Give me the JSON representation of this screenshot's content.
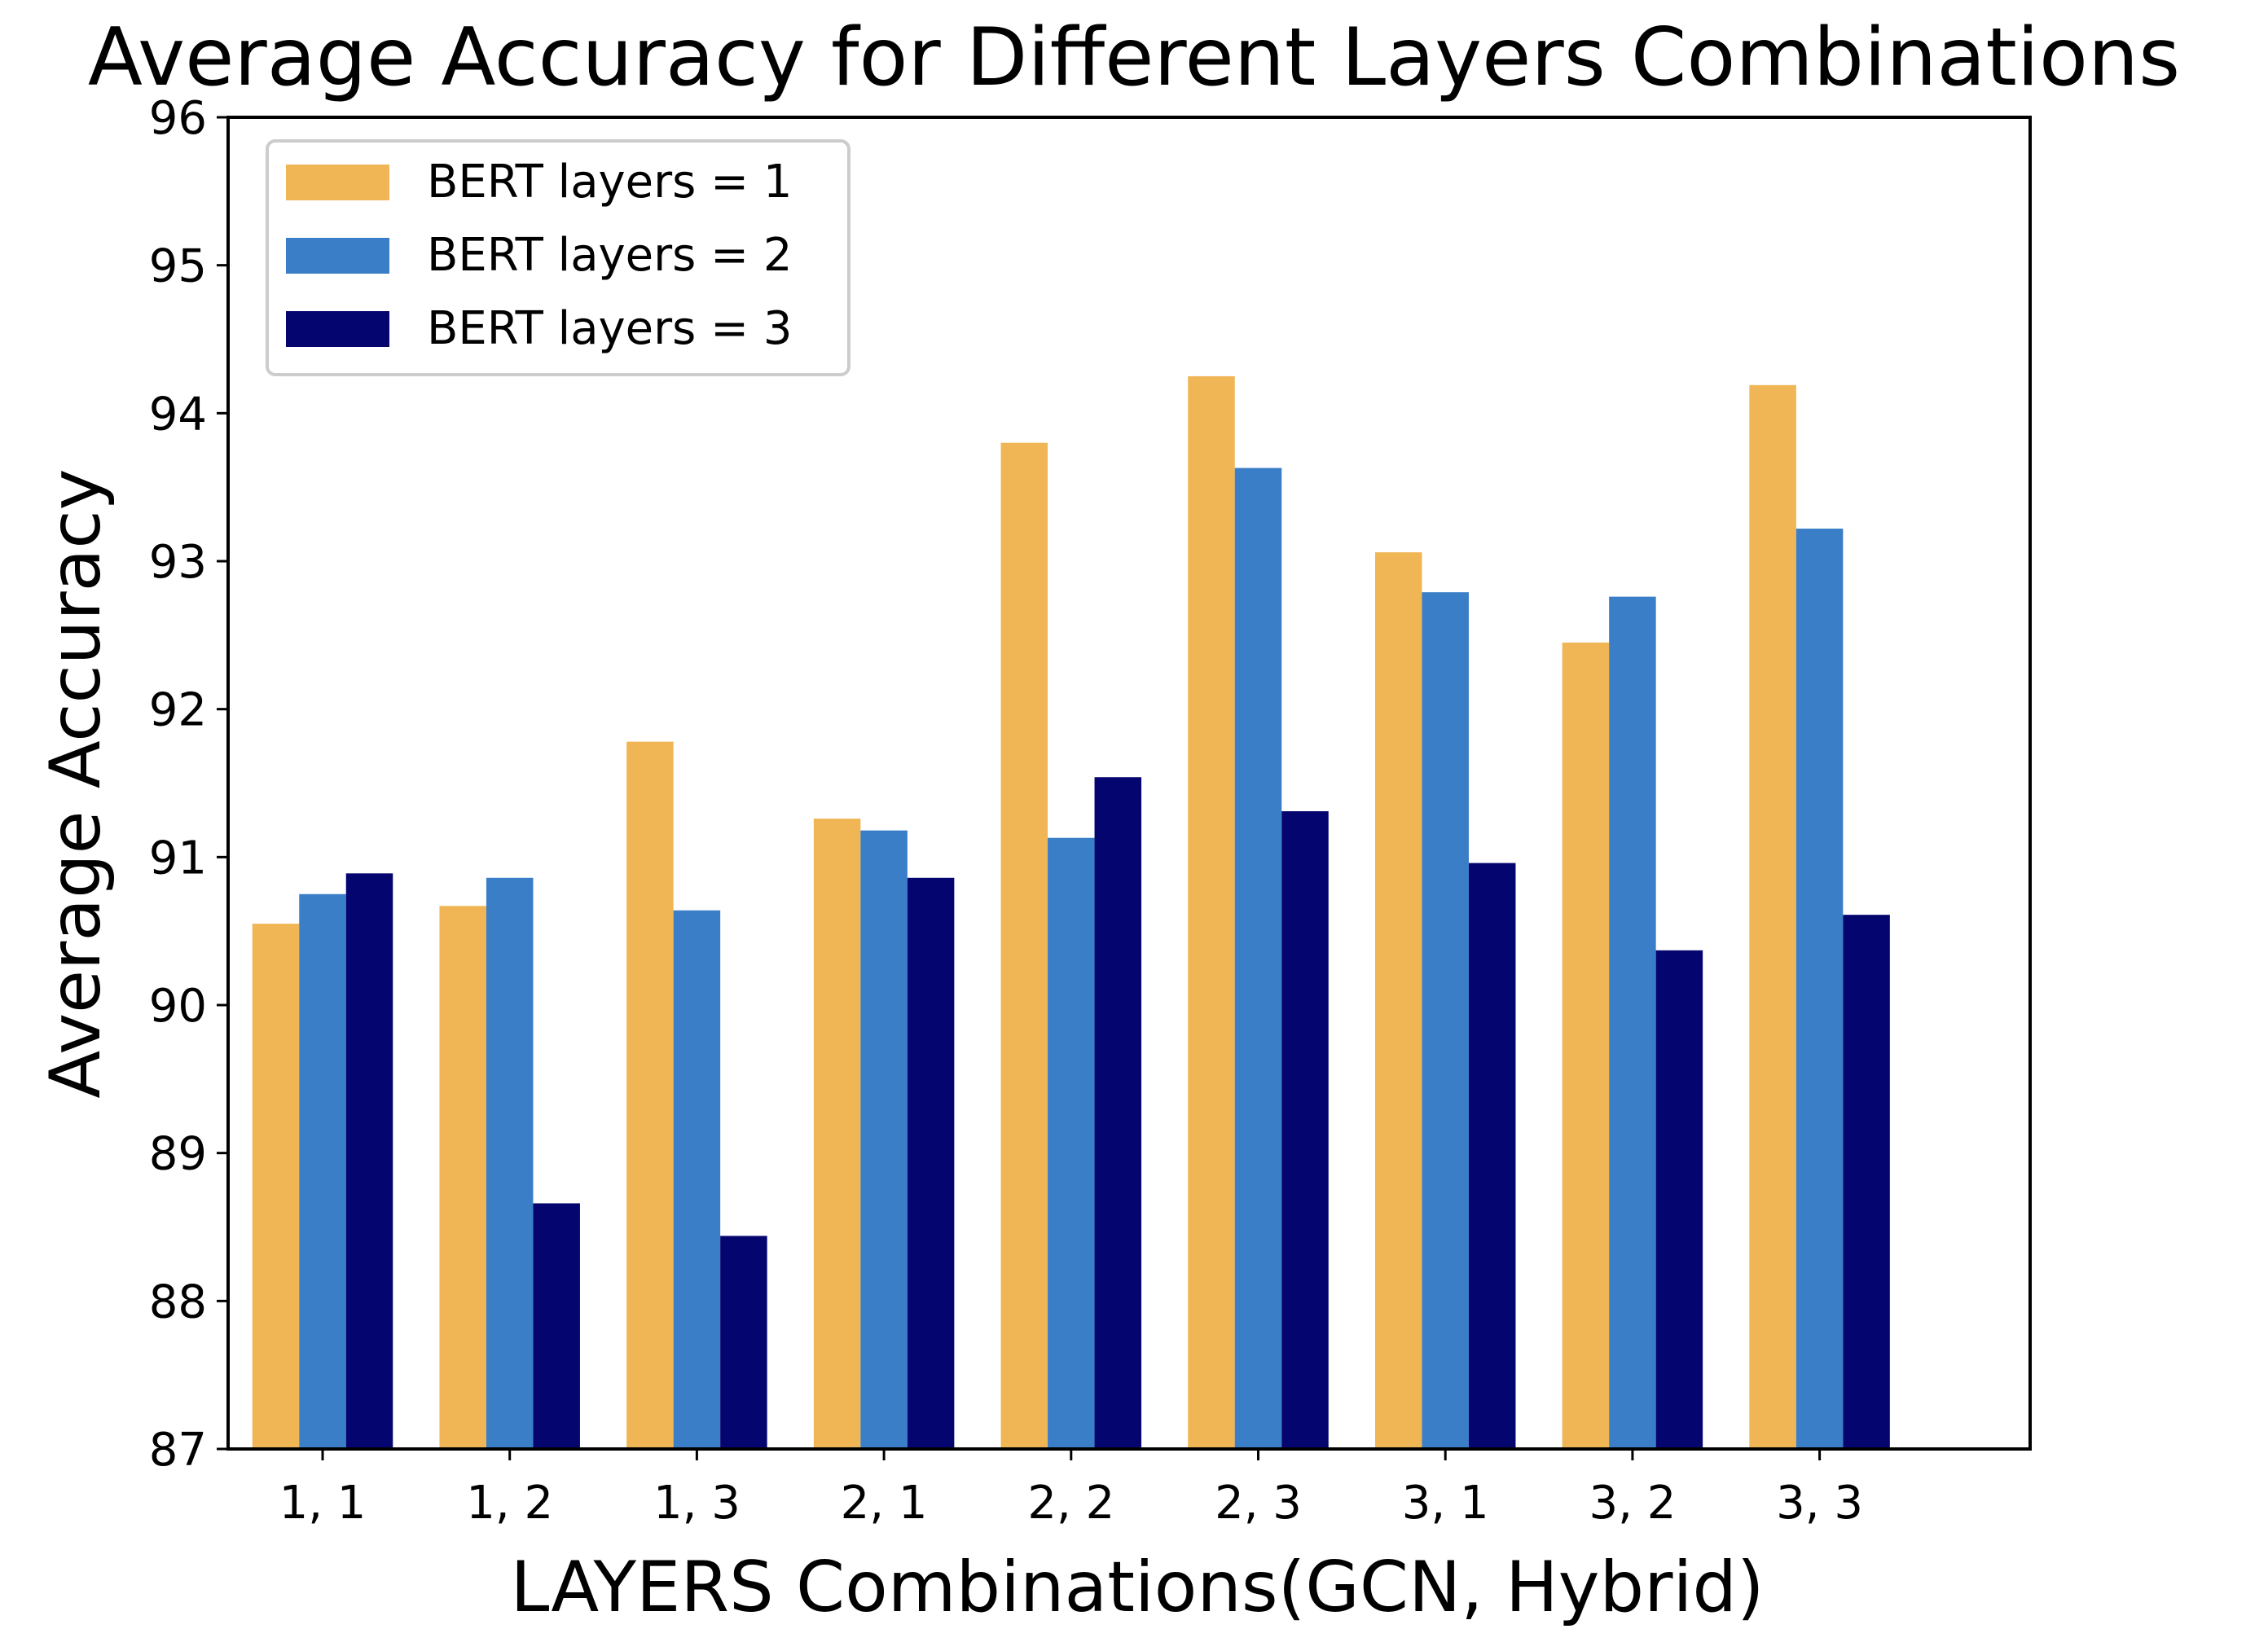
{
  "chart_data": {
    "type": "bar",
    "title": "Average Accuracy for Different Layers Combinations",
    "xlabel": "LAYERS Combinations(GCN, Hybrid)",
    "ylabel": "Average Accuracy",
    "categories": [
      "1, 1",
      "1, 2",
      "1, 3",
      "2, 1",
      "2, 2",
      "2, 3",
      "3, 1",
      "3, 2",
      "3, 3"
    ],
    "ylim": [
      87,
      96
    ],
    "yticks": [
      "87",
      "88",
      "89",
      "90",
      "91",
      "92",
      "93",
      "94",
      "95",
      "96"
    ],
    "grid": false,
    "legend_position": "top-left",
    "series": [
      {
        "name": "BERT layers = 1",
        "color": "#F0B655",
        "values": [
          90.55,
          90.67,
          91.78,
          91.26,
          93.8,
          94.25,
          93.06,
          92.45,
          94.19
        ]
      },
      {
        "name": "BERT layers = 2",
        "color": "#3A7EC8",
        "values": [
          90.75,
          90.86,
          90.64,
          91.18,
          91.13,
          93.63,
          92.79,
          92.76,
          93.22
        ]
      },
      {
        "name": "BERT layers = 3",
        "color": "#050570",
        "values": [
          90.89,
          88.66,
          88.44,
          90.86,
          91.54,
          91.31,
          90.96,
          90.37,
          90.61
        ]
      }
    ]
  }
}
